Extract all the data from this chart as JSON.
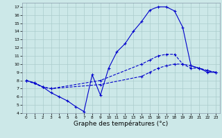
{
  "title": "Graphe des températures (°c)",
  "bg_color": "#cce8e8",
  "grid_color": "#aacccc",
  "line_color": "#0000cc",
  "xlim": [
    -0.5,
    23.5
  ],
  "ylim": [
    4,
    17.5
  ],
  "xticks": [
    0,
    1,
    2,
    3,
    4,
    5,
    6,
    7,
    8,
    9,
    10,
    11,
    12,
    13,
    14,
    15,
    16,
    17,
    18,
    19,
    20,
    21,
    22,
    23
  ],
  "yticks": [
    4,
    5,
    6,
    7,
    8,
    9,
    10,
    11,
    12,
    13,
    14,
    15,
    16,
    17
  ],
  "line1_x": [
    0,
    1,
    2,
    3,
    4,
    5,
    6,
    7,
    8,
    9,
    10,
    11,
    12,
    13,
    14,
    15,
    16,
    17,
    18,
    19,
    20,
    21,
    22,
    23
  ],
  "line1_y": [
    8.0,
    7.7,
    7.2,
    6.5,
    6.0,
    5.5,
    4.8,
    4.2,
    8.7,
    6.2,
    9.5,
    11.5,
    12.5,
    14.0,
    15.2,
    16.6,
    17.0,
    17.0,
    16.5,
    14.5,
    9.8,
    9.5,
    9.0,
    9.0
  ],
  "line2_x": [
    0,
    2,
    3,
    9,
    14,
    15,
    16,
    17,
    18,
    19,
    20,
    21,
    22,
    23
  ],
  "line2_y": [
    8.0,
    7.2,
    7.0,
    8.0,
    10.0,
    10.5,
    11.0,
    11.2,
    11.2,
    10.0,
    9.5,
    9.5,
    9.2,
    9.0
  ],
  "line3_x": [
    0,
    1,
    2,
    3,
    9,
    14,
    15,
    16,
    17,
    18,
    19,
    20,
    21,
    22,
    23
  ],
  "line3_y": [
    8.0,
    7.7,
    7.2,
    7.0,
    7.5,
    8.5,
    9.0,
    9.5,
    9.8,
    10.0,
    10.0,
    9.8,
    9.5,
    9.2,
    9.0
  ]
}
